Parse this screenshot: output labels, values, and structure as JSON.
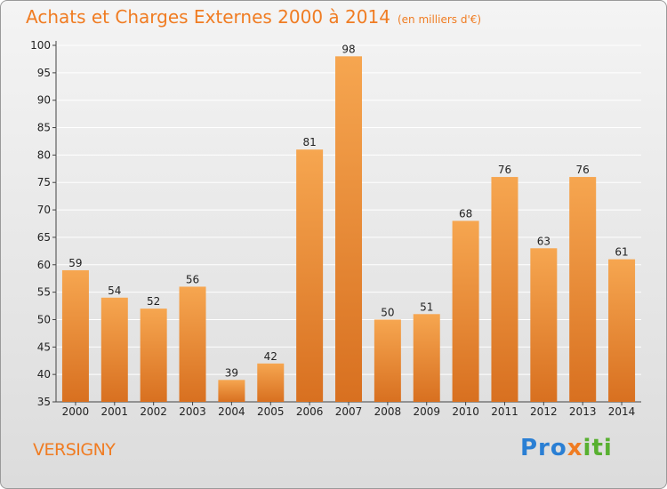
{
  "title": "Achats et Charges Externes 2000 à 2014",
  "subtitle": "(en milliers d'€)",
  "commune": "VERSIGNY",
  "logo": {
    "p1": "Pro",
    "p2": "x",
    "p3": "iti"
  },
  "colors": {
    "bar_top": "#f6a650",
    "bar_bottom": "#d87020",
    "accent": "#f07c22",
    "grid": "#ffffff"
  },
  "chart_data": {
    "type": "bar",
    "title": "Achats et Charges Externes 2000 à 2014",
    "ylabel": "en milliers d'€",
    "categories": [
      "2000",
      "2001",
      "2002",
      "2003",
      "2004",
      "2005",
      "2006",
      "2007",
      "2008",
      "2009",
      "2010",
      "2011",
      "2012",
      "2013",
      "2014"
    ],
    "values": [
      59,
      54,
      52,
      56,
      39,
      42,
      81,
      98,
      50,
      51,
      68,
      76,
      63,
      76,
      61
    ],
    "ylim": [
      35,
      100
    ],
    "yticks": [
      35,
      40,
      45,
      50,
      55,
      60,
      65,
      70,
      75,
      80,
      85,
      90,
      95,
      100
    ],
    "grid": true
  }
}
